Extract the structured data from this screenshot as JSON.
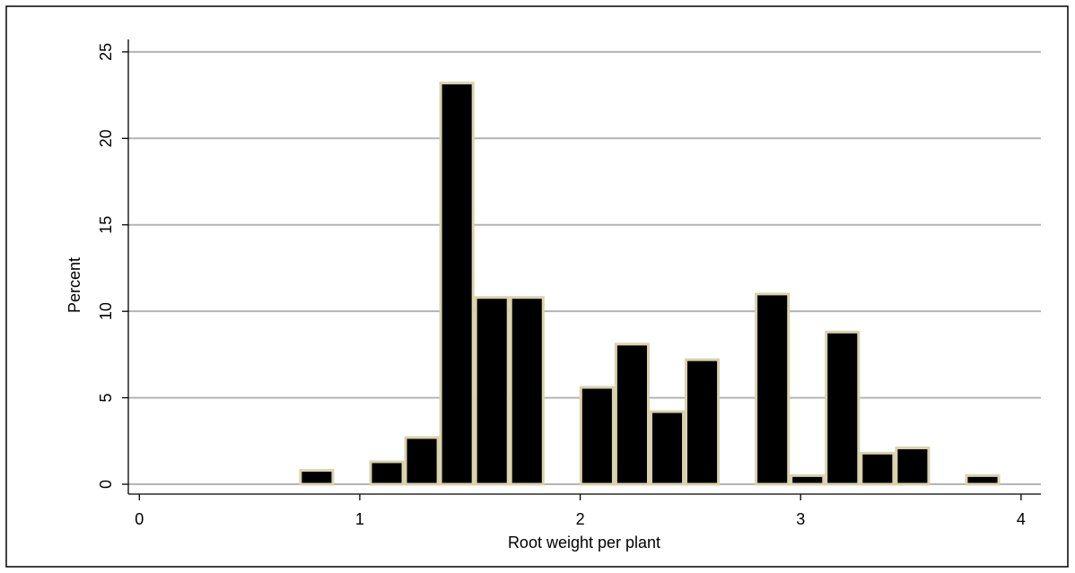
{
  "chart_data": {
    "type": "histogram",
    "x_label": "Root weight per plant",
    "y_label": "Percent",
    "bins": [
      0.725,
      0.884,
      1.043,
      1.202,
      1.361,
      1.52,
      1.679,
      1.838,
      1.997,
      2.156,
      2.315,
      2.474,
      2.633,
      2.792,
      2.951,
      3.11,
      3.269,
      3.428,
      3.587,
      3.746,
      3.905
    ],
    "values": [
      0.8,
      0,
      1.3,
      2.7,
      23.2,
      10.8,
      10.8,
      0,
      5.6,
      8.1,
      4.2,
      7.2,
      0,
      11,
      0.5,
      8.8,
      1.8,
      2.1,
      0,
      0.5
    ],
    "color": "#000000",
    "edge_color": "#d9d2ac",
    "xlim": [
      -0.05,
      4.09
    ],
    "xticks": [
      0,
      1,
      2,
      3,
      4
    ],
    "ylim": [
      -0.57,
      25.72
    ],
    "yticks": [
      0,
      5,
      10,
      15,
      20,
      25
    ],
    "grid": true
  }
}
